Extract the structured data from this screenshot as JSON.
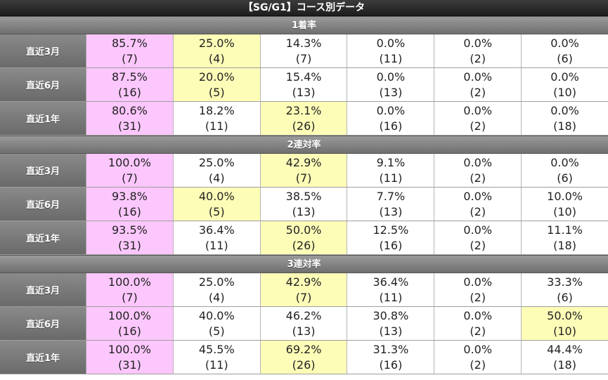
{
  "title": "【SG/G1】コース別データ",
  "colors": {
    "highlight_pink": "#fcc7fd",
    "highlight_yellow": "#fdfdb8"
  },
  "sections": [
    {
      "header": "1着率",
      "rows": [
        {
          "label": "直近3月",
          "cells": [
            {
              "pct": "85.7%",
              "cnt": "(7)",
              "hl": "pink"
            },
            {
              "pct": "25.0%",
              "cnt": "(4)",
              "hl": "yellow"
            },
            {
              "pct": "14.3%",
              "cnt": "(7)",
              "hl": ""
            },
            {
              "pct": "0.0%",
              "cnt": "(11)",
              "hl": ""
            },
            {
              "pct": "0.0%",
              "cnt": "(2)",
              "hl": ""
            },
            {
              "pct": "0.0%",
              "cnt": "(6)",
              "hl": ""
            }
          ]
        },
        {
          "label": "直近6月",
          "cells": [
            {
              "pct": "87.5%",
              "cnt": "(16)",
              "hl": "pink"
            },
            {
              "pct": "20.0%",
              "cnt": "(5)",
              "hl": "yellow"
            },
            {
              "pct": "15.4%",
              "cnt": "(13)",
              "hl": ""
            },
            {
              "pct": "0.0%",
              "cnt": "(13)",
              "hl": ""
            },
            {
              "pct": "0.0%",
              "cnt": "(2)",
              "hl": ""
            },
            {
              "pct": "0.0%",
              "cnt": "(10)",
              "hl": ""
            }
          ]
        },
        {
          "label": "直近1年",
          "cells": [
            {
              "pct": "80.6%",
              "cnt": "(31)",
              "hl": "pink"
            },
            {
              "pct": "18.2%",
              "cnt": "(11)",
              "hl": ""
            },
            {
              "pct": "23.1%",
              "cnt": "(26)",
              "hl": "yellow"
            },
            {
              "pct": "0.0%",
              "cnt": "(16)",
              "hl": ""
            },
            {
              "pct": "0.0%",
              "cnt": "(2)",
              "hl": ""
            },
            {
              "pct": "0.0%",
              "cnt": "(18)",
              "hl": ""
            }
          ]
        }
      ]
    },
    {
      "header": "2連対率",
      "rows": [
        {
          "label": "直近3月",
          "cells": [
            {
              "pct": "100.0%",
              "cnt": "(7)",
              "hl": "pink"
            },
            {
              "pct": "25.0%",
              "cnt": "(4)",
              "hl": ""
            },
            {
              "pct": "42.9%",
              "cnt": "(7)",
              "hl": "yellow"
            },
            {
              "pct": "9.1%",
              "cnt": "(11)",
              "hl": ""
            },
            {
              "pct": "0.0%",
              "cnt": "(2)",
              "hl": ""
            },
            {
              "pct": "0.0%",
              "cnt": "(6)",
              "hl": ""
            }
          ]
        },
        {
          "label": "直近6月",
          "cells": [
            {
              "pct": "93.8%",
              "cnt": "(16)",
              "hl": "pink"
            },
            {
              "pct": "40.0%",
              "cnt": "(5)",
              "hl": "yellow"
            },
            {
              "pct": "38.5%",
              "cnt": "(13)",
              "hl": ""
            },
            {
              "pct": "7.7%",
              "cnt": "(13)",
              "hl": ""
            },
            {
              "pct": "0.0%",
              "cnt": "(2)",
              "hl": ""
            },
            {
              "pct": "10.0%",
              "cnt": "(10)",
              "hl": ""
            }
          ]
        },
        {
          "label": "直近1年",
          "cells": [
            {
              "pct": "93.5%",
              "cnt": "(31)",
              "hl": "pink"
            },
            {
              "pct": "36.4%",
              "cnt": "(11)",
              "hl": ""
            },
            {
              "pct": "50.0%",
              "cnt": "(26)",
              "hl": "yellow"
            },
            {
              "pct": "12.5%",
              "cnt": "(16)",
              "hl": ""
            },
            {
              "pct": "0.0%",
              "cnt": "(2)",
              "hl": ""
            },
            {
              "pct": "11.1%",
              "cnt": "(18)",
              "hl": ""
            }
          ]
        }
      ]
    },
    {
      "header": "3連対率",
      "rows": [
        {
          "label": "直近3月",
          "cells": [
            {
              "pct": "100.0%",
              "cnt": "(7)",
              "hl": "pink"
            },
            {
              "pct": "25.0%",
              "cnt": "(4)",
              "hl": ""
            },
            {
              "pct": "42.9%",
              "cnt": "(7)",
              "hl": "yellow"
            },
            {
              "pct": "36.4%",
              "cnt": "(11)",
              "hl": ""
            },
            {
              "pct": "0.0%",
              "cnt": "(2)",
              "hl": ""
            },
            {
              "pct": "33.3%",
              "cnt": "(6)",
              "hl": ""
            }
          ]
        },
        {
          "label": "直近6月",
          "cells": [
            {
              "pct": "100.0%",
              "cnt": "(16)",
              "hl": "pink"
            },
            {
              "pct": "40.0%",
              "cnt": "(5)",
              "hl": ""
            },
            {
              "pct": "46.2%",
              "cnt": "(13)",
              "hl": ""
            },
            {
              "pct": "30.8%",
              "cnt": "(13)",
              "hl": ""
            },
            {
              "pct": "0.0%",
              "cnt": "(2)",
              "hl": ""
            },
            {
              "pct": "50.0%",
              "cnt": "(10)",
              "hl": "yellow"
            }
          ]
        },
        {
          "label": "直近1年",
          "cells": [
            {
              "pct": "100.0%",
              "cnt": "(31)",
              "hl": "pink"
            },
            {
              "pct": "45.5%",
              "cnt": "(11)",
              "hl": ""
            },
            {
              "pct": "69.2%",
              "cnt": "(26)",
              "hl": "yellow"
            },
            {
              "pct": "31.3%",
              "cnt": "(16)",
              "hl": ""
            },
            {
              "pct": "0.0%",
              "cnt": "(2)",
              "hl": ""
            },
            {
              "pct": "44.4%",
              "cnt": "(18)",
              "hl": ""
            }
          ]
        }
      ]
    }
  ]
}
